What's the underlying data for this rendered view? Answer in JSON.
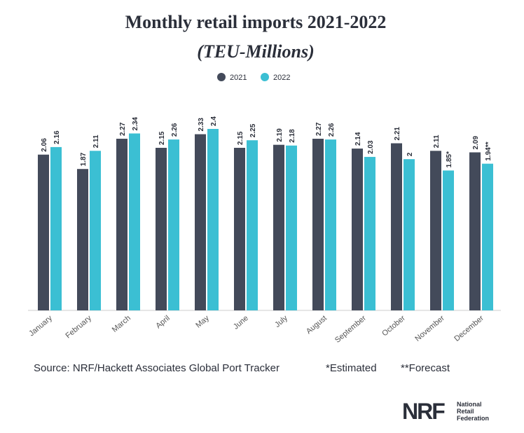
{
  "chart_data": {
    "type": "bar",
    "title": "Monthly retail imports 2021-2022",
    "subtitle": "(TEU-Millions)",
    "categories": [
      "January",
      "February",
      "March",
      "April",
      "May",
      "June",
      "July",
      "August",
      "September",
      "October",
      "November",
      "December"
    ],
    "series": [
      {
        "name": "2021",
        "color": "#434a5a",
        "values": [
          2.06,
          1.87,
          2.27,
          2.15,
          2.33,
          2.15,
          2.19,
          2.27,
          2.14,
          2.21,
          2.11,
          2.09
        ]
      },
      {
        "name": "2022",
        "color": "#3bbfd3",
        "values": [
          2.16,
          2.11,
          2.34,
          2.26,
          2.4,
          2.25,
          2.18,
          2.26,
          2.03,
          2,
          1.85,
          1.94
        ],
        "value_labels": [
          "2.16",
          "2.11",
          "2.34",
          "2.26",
          "2.4",
          "2.25",
          "2.18",
          "2.26",
          "2.03",
          "2",
          "1.85*",
          "1.94**"
        ]
      }
    ],
    "source": "Source: NRF/Hackett Associates Global Port Tracker",
    "notes": [
      "*Estimated",
      "**Forecast"
    ]
  },
  "logo": {
    "mark": "NRF",
    "lines": [
      "National",
      "Retail",
      "Federation"
    ]
  }
}
